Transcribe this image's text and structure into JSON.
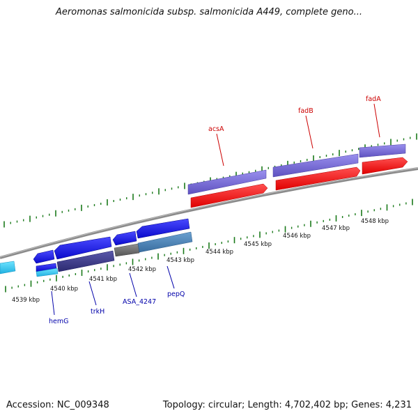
{
  "header": {
    "title": "Aeromonas salmonicida subsp. salmonicida A449, complete geno..."
  },
  "footer": {
    "accession": "Accession: NC_009348",
    "summary": "Topology: circular; Length: 4,702,402 bp; Genes: 4,231"
  },
  "scale_labels": [
    "4539 kbp",
    "4540 kbp",
    "4541 kbp",
    "4542 kbp",
    "4543 kbp",
    "4544 kbp",
    "4545 kbp",
    "4546 kbp",
    "4547 kbp",
    "4548 kbp"
  ],
  "gene_labels_upper": [
    "acsA",
    "fadB",
    "fadA"
  ],
  "gene_labels_lower": [
    "hemG",
    "trkH",
    "ASA_4247",
    "pepQ"
  ],
  "colors": {
    "tick": "#1a7a1a",
    "backbone": "#888888",
    "upper_label": "#cc0000",
    "lower_label": "#0000aa",
    "blue": "#1010e6",
    "dark_blue": "#1414c8",
    "purple": "#7a6ed6",
    "dark_purple": "#3c3a8a",
    "steel": "#4a84b8",
    "gray": "#707070",
    "red": "#ff1010",
    "cyan": "#40d0f0"
  }
}
